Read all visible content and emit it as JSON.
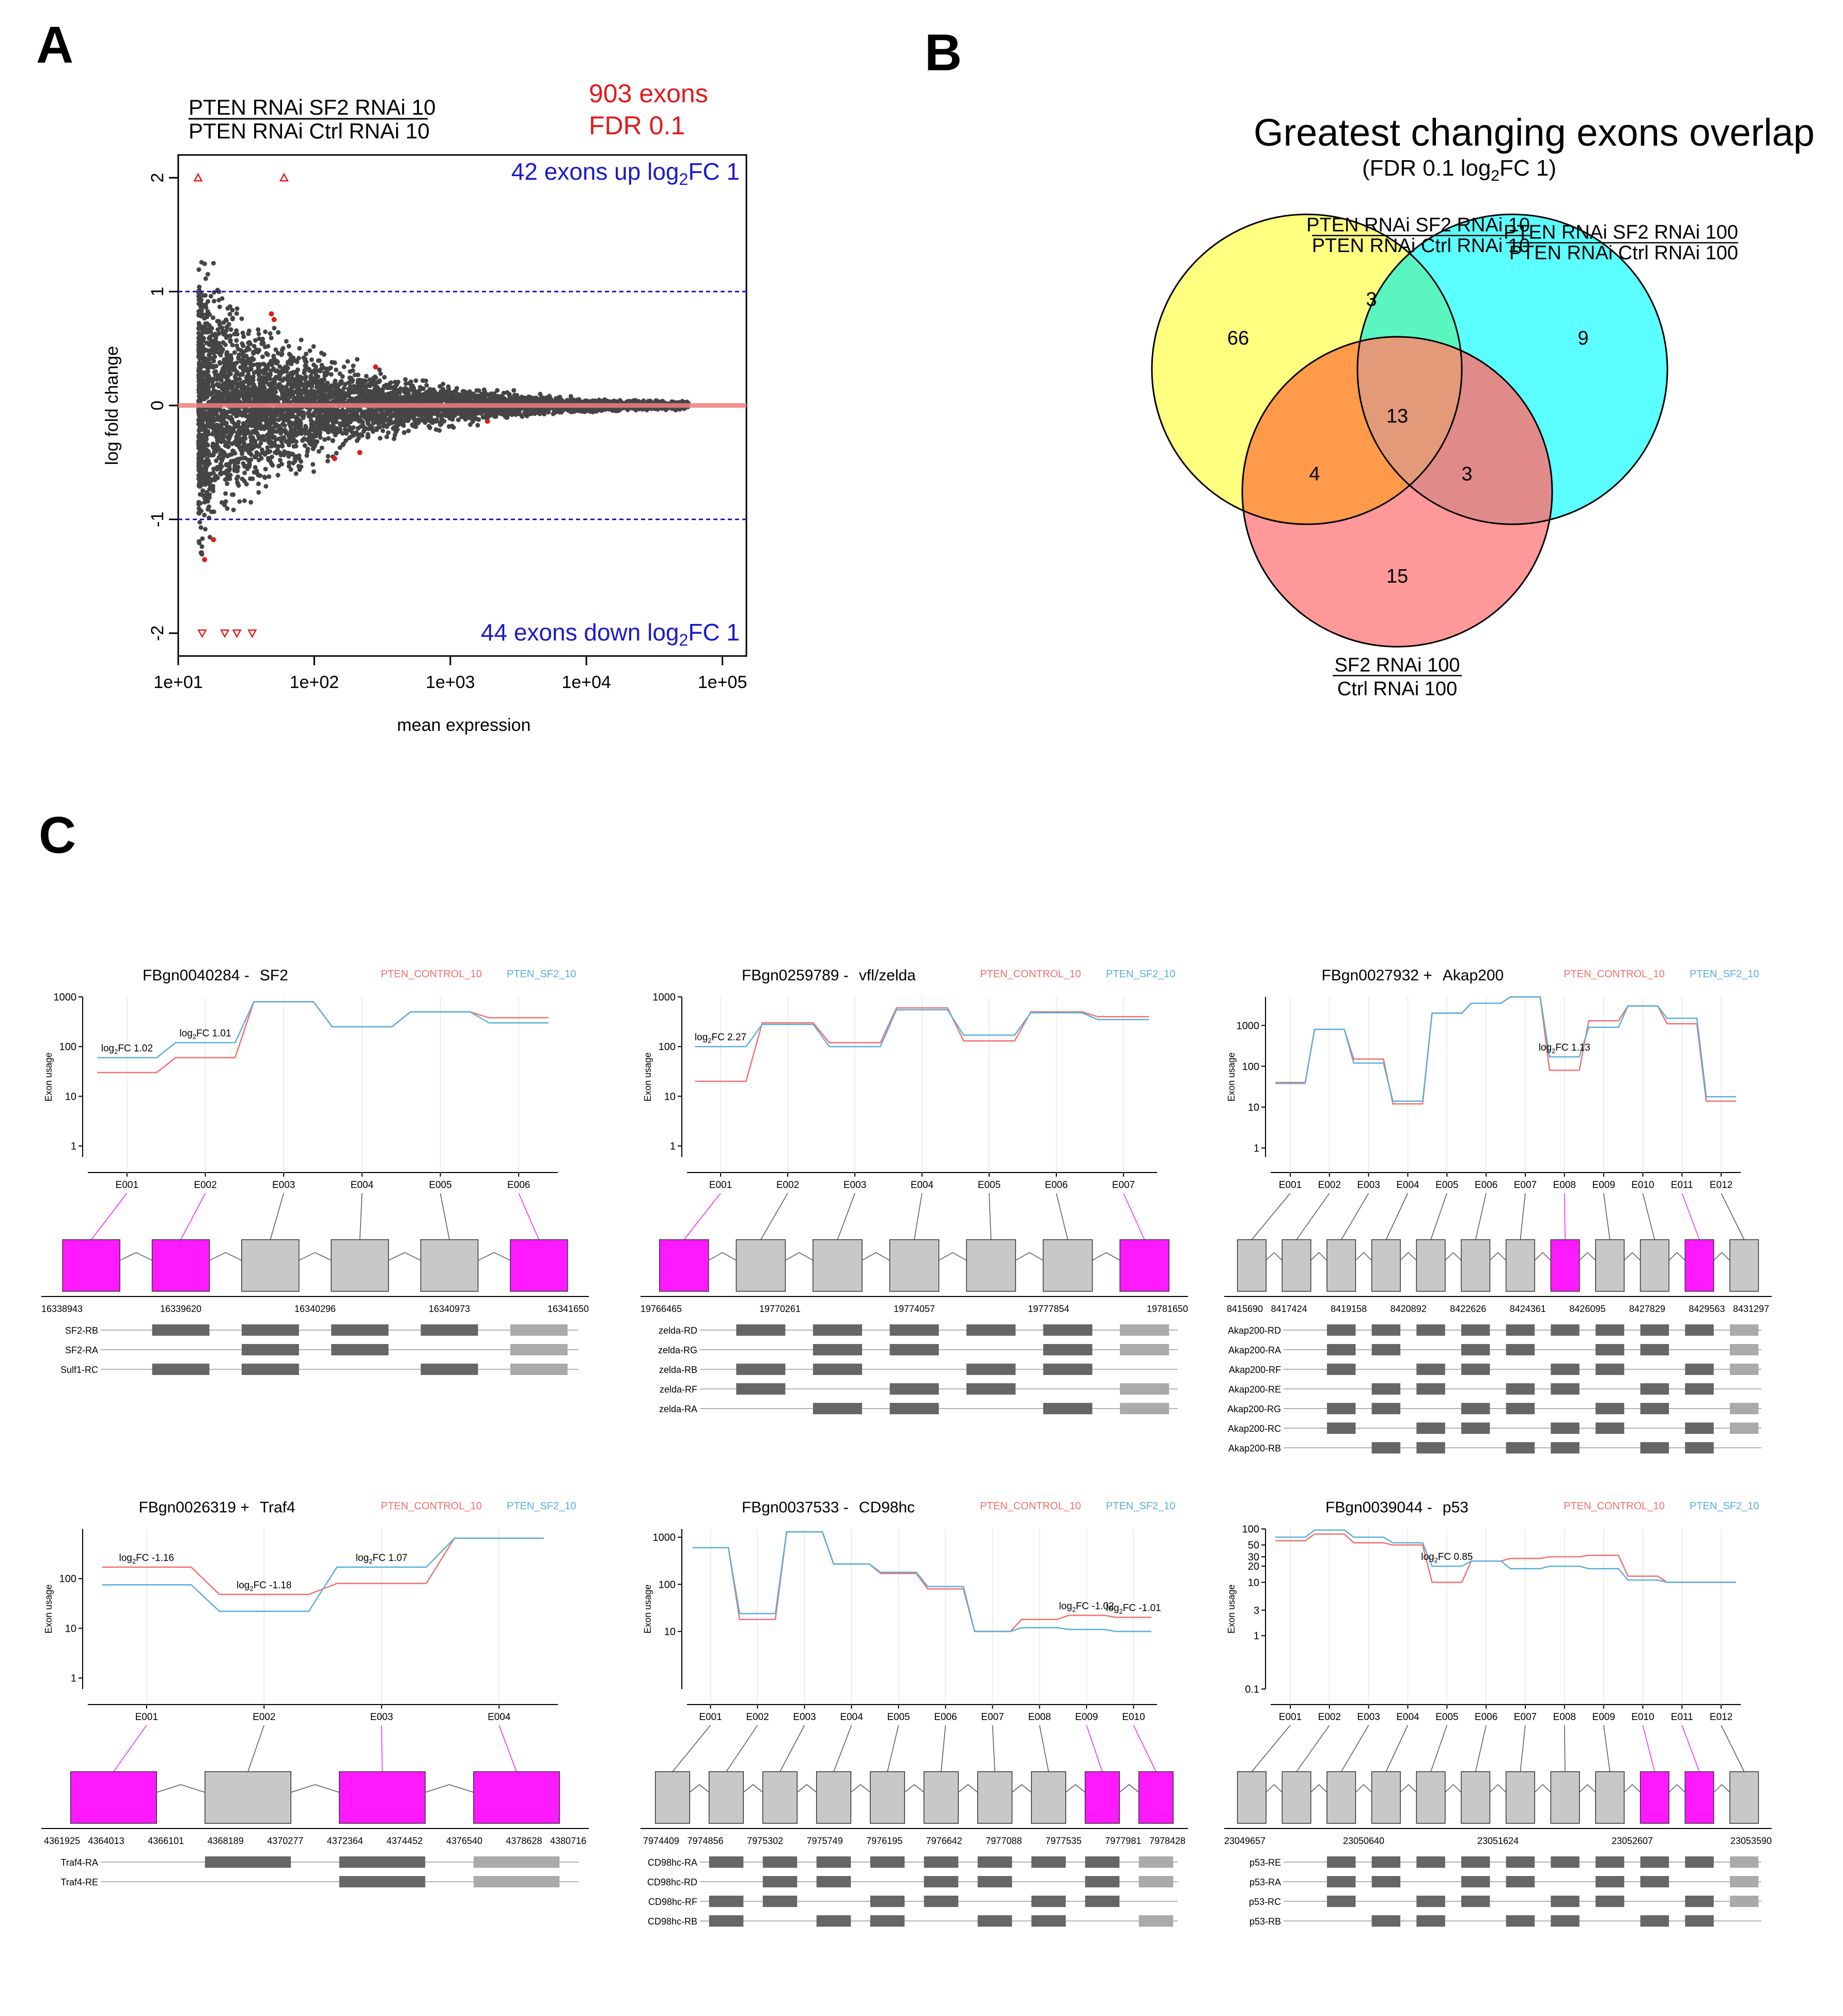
{
  "panel_labels": {
    "a": "A",
    "b": "B",
    "c": "C"
  },
  "chart_data": [
    {
      "type": "scatter",
      "panel": "A",
      "header": {
        "line1": "PTEN RNAi SF2 RNAi 10",
        "line2": "PTEN RNAi Ctrl RNAi 10"
      },
      "sig_text": {
        "line1": "903 exons",
        "line2": "FDR 0.1"
      },
      "annotations": {
        "up_pre": "42 exons up log",
        "up_sub": "2",
        "up_post": "FC 1",
        "down_pre": "44 exons down log",
        "down_sub": "2",
        "down_post": "FC 1"
      },
      "xlabel": "mean expression",
      "ylabel": "log fold change",
      "xscale": "log",
      "xlim": [
        10,
        150000
      ],
      "ylim": [
        -2.2,
        2.2
      ],
      "xticks": [
        10,
        100,
        1000,
        10000,
        100000
      ],
      "xtick_labels": [
        "1e+01",
        "1e+02",
        "1e+03",
        "1e+04",
        "1e+05"
      ],
      "yticks": [
        -2,
        -1,
        0,
        1,
        2
      ],
      "ytick_labels": [
        "-2",
        "-1",
        "0",
        "1",
        "2"
      ],
      "thresholds": [
        1,
        -1
      ],
      "colors": {
        "nonsig": "#454545",
        "sig": "#e41a1c",
        "threshold": "#1a1acc",
        "zero": "#f08080"
      },
      "outlier_triangles": [
        {
          "x": 14,
          "y": 2,
          "dir": "up"
        },
        {
          "x": 60,
          "y": 2,
          "dir": "up"
        },
        {
          "x": 15,
          "y": -2,
          "dir": "down"
        },
        {
          "x": 22,
          "y": -2,
          "dir": "down"
        },
        {
          "x": 27,
          "y": -2,
          "dir": "down"
        },
        {
          "x": 35,
          "y": -2,
          "dir": "down"
        }
      ]
    },
    {
      "type": "venn",
      "panel": "B",
      "title": "Greatest changing exons overlap",
      "subtitle": {
        "pre": "(FDR 0.1 log",
        "sub": "2",
        "post": "FC 1)"
      },
      "sets": [
        {
          "line1": "PTEN RNAi SF2 RNAi 10",
          "line2": "PTEN RNAi Ctrl RNAi 10",
          "color": "#ffff80"
        },
        {
          "line1": "PTEN RNAi SF2 RNAi 100",
          "line2": "PTEN RNAi Ctrl RNAi 100",
          "color": "#5bffff"
        },
        {
          "line1": "SF2 RNAi 100",
          "line2": "Ctrl RNAi 100",
          "color": "#ff9999"
        }
      ],
      "regions": {
        "A_only": 66,
        "B_only": 9,
        "C_only": 15,
        "AB": 3,
        "AC": 4,
        "BC": 3,
        "ABC": 13
      }
    },
    {
      "type": "line",
      "panel": "C",
      "legend": {
        "control": "PTEN_CONTROL_10",
        "sf2": "PTEN_SF2_10"
      },
      "ylabel": "Exon usage",
      "colors": {
        "control": "#f36f6f",
        "sf2": "#5aaedb",
        "highlight": "#ff19ff",
        "exon": "#c8c8c8",
        "cds": "#666666"
      },
      "genes": [
        {
          "id": "FBgn0040284 -",
          "name": "SF2",
          "exons": [
            "E001",
            "E002",
            "E003",
            "E004",
            "E005",
            "E006"
          ],
          "control": [
            30,
            60,
            800,
            250,
            500,
            380
          ],
          "sf2": [
            60,
            120,
            800,
            250,
            500,
            300
          ],
          "ylim": [
            0.6,
            1000
          ],
          "yticks": [
            1,
            10,
            100,
            1000
          ],
          "ytick_labels": [
            "1",
            "10",
            "100",
            "1000"
          ],
          "fc": [
            {
              "i": 0,
              "pre": "log",
              "post": "FC 1.02"
            },
            {
              "i": 1,
              "pre": "log",
              "post": "FC 1.01"
            }
          ],
          "highlight": [
            0,
            1,
            5
          ],
          "coords": [
            "16338943",
            "16339620",
            "16340296",
            "16340973",
            "16341650"
          ],
          "transcripts": [
            "SF2-RB",
            "SF2-RA",
            "Sulf1-RC"
          ]
        },
        {
          "id": "FBgn0259789 -",
          "name": "vfl/zelda",
          "exons": [
            "E001",
            "E002",
            "E003",
            "E004",
            "E005",
            "E006",
            "E007"
          ],
          "control": [
            20,
            300,
            120,
            600,
            130,
            500,
            400
          ],
          "sf2": [
            100,
            280,
            100,
            550,
            170,
            480,
            350
          ],
          "ylim": [
            0.6,
            1000
          ],
          "yticks": [
            1,
            10,
            100,
            1000
          ],
          "ytick_labels": [
            "1",
            "10",
            "100",
            "1000"
          ],
          "fc": [
            {
              "i": 0,
              "pre": "log",
              "post": "FC 2.27"
            }
          ],
          "highlight": [
            0,
            6
          ],
          "coords": [
            "19766465",
            "19770261",
            "19774057",
            "19777854",
            "19781650"
          ],
          "transcripts": [
            "zelda-RD",
            "zelda-RG",
            "zelda-RB",
            "zelda-RF",
            "zelda-RA"
          ]
        },
        {
          "id": "FBgn0027932 +",
          "name": "Akap200",
          "exons": [
            "E001",
            "E002",
            "E003",
            "E004",
            "E005",
            "E006",
            "E007",
            "E008",
            "E009",
            "E010",
            "E011",
            "E012"
          ],
          "control": [
            40,
            800,
            150,
            12,
            2000,
            3500,
            5000,
            80,
            1300,
            3000,
            1100,
            14
          ],
          "sf2": [
            38,
            800,
            120,
            14,
            2000,
            3500,
            5000,
            170,
            900,
            3000,
            1500,
            18
          ],
          "ylim": [
            0.6,
            5000
          ],
          "yticks": [
            1,
            10,
            100,
            1000
          ],
          "ytick_labels": [
            "1",
            "10",
            "100",
            "1000"
          ],
          "fc": [
            {
              "i": 7,
              "pre": "log",
              "post": "FC 1.13"
            }
          ],
          "highlight": [
            7,
            10
          ],
          "coords": [
            "8415690",
            "8417424",
            "8419158",
            "8420892",
            "8422626",
            "8424361",
            "8426095",
            "8427829",
            "8429563",
            "8431297"
          ],
          "transcripts": [
            "Akap200-RD",
            "Akap200-RA",
            "Akap200-RF",
            "Akap200-RE",
            "Akap200-RG",
            "Akap200-RC",
            "Akap200-RB"
          ]
        },
        {
          "id": "FBgn0026319 +",
          "name": "Traf4",
          "exons": [
            "E001",
            "E002",
            "E003",
            "E004"
          ],
          "control": [
            170,
            48,
            80,
            650
          ],
          "sf2": [
            75,
            22,
            170,
            650
          ],
          "ylim": [
            0.6,
            1000
          ],
          "yticks": [
            1,
            10,
            100
          ],
          "ytick_labels": [
            "1",
            "10",
            "100"
          ],
          "fc": [
            {
              "i": 0,
              "pre": "log",
              "post": "FC -1.16"
            },
            {
              "i": 1,
              "pre": "log",
              "post": "FC -1.18"
            },
            {
              "i": 2,
              "pre": "log",
              "post": "FC 1.07"
            }
          ],
          "highlight": [
            0,
            2,
            3
          ],
          "coords": [
            "4361925",
            "4364013",
            "4366101",
            "4368189",
            "4370277",
            "4372364",
            "4374452",
            "4376540",
            "4378628",
            "4380716"
          ],
          "transcripts": [
            "Traf4-RA",
            "Traf4-RE"
          ]
        },
        {
          "id": "FBgn0037533 -",
          "name": "CD98hc",
          "exons": [
            "E001",
            "E002",
            "E003",
            "E004",
            "E005",
            "E006",
            "E007",
            "E008",
            "E009",
            "E010"
          ],
          "control": [
            600,
            18,
            1300,
            270,
            170,
            80,
            10,
            18,
            22,
            20
          ],
          "sf2": [
            600,
            24,
            1300,
            270,
            180,
            90,
            10,
            12,
            11,
            10
          ],
          "ylim": [
            0.6,
            1500
          ],
          "yticks": [
            10,
            100,
            1000
          ],
          "ytick_labels": [
            "10",
            "100",
            "1000"
          ],
          "fc": [
            {
              "i": 8,
              "pre": "log",
              "post": "FC -1.02"
            },
            {
              "i": 9,
              "pre": "log",
              "post": "FC -1.01"
            }
          ],
          "highlight": [
            8,
            9
          ],
          "coords": [
            "7974409",
            "7974856",
            "7975302",
            "7975749",
            "7976195",
            "7976642",
            "7977088",
            "7977535",
            "7977981",
            "7978428"
          ],
          "transcripts": [
            "CD98hc-RA",
            "CD98hc-RD",
            "CD98hc-RF",
            "CD98hc-RB"
          ]
        },
        {
          "id": "FBgn0039044 -",
          "name": "p53",
          "exons": [
            "E001",
            "E002",
            "E003",
            "E004",
            "E005",
            "E006",
            "E007",
            "E008",
            "E009",
            "E010",
            "E011",
            "E012"
          ],
          "control": [
            60,
            80,
            55,
            50,
            10,
            25,
            28,
            30,
            32,
            13,
            10,
            10
          ],
          "sf2": [
            70,
            95,
            70,
            55,
            20,
            25,
            18,
            20,
            18,
            11,
            10,
            10
          ],
          "ylim": [
            0.1,
            100
          ],
          "yticks": [
            0.1,
            1,
            3,
            10,
            20,
            30,
            50,
            100
          ],
          "ytick_labels": [
            "0.1",
            "1",
            "3",
            "10",
            "20",
            "30",
            "50",
            "100"
          ],
          "fc": [
            {
              "i": 4,
              "pre": "log",
              "post": "FC 0.85"
            }
          ],
          "highlight": [
            9,
            10
          ],
          "coords": [
            "23049657",
            "23050640",
            "23051624",
            "23052607",
            "23053590"
          ],
          "transcripts": [
            "p53-RE",
            "p53-RA",
            "p53-RC",
            "p53-RB"
          ]
        }
      ]
    }
  ]
}
